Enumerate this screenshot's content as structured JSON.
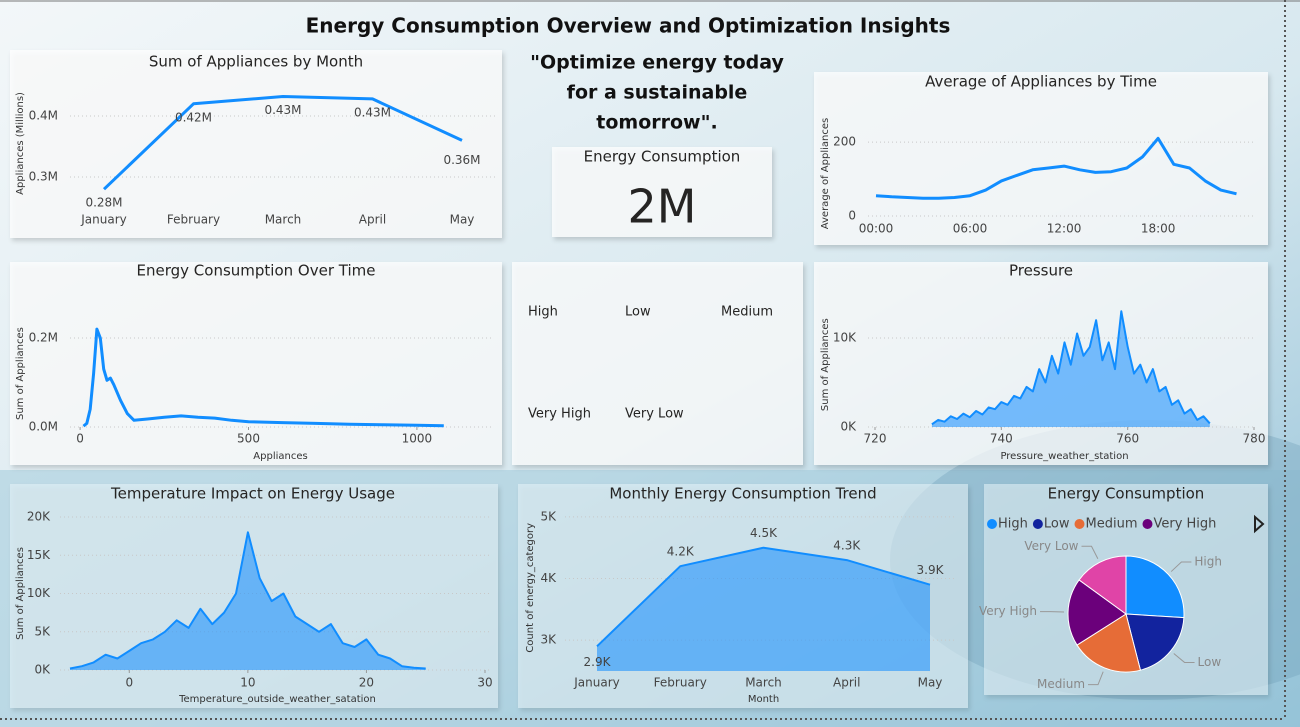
{
  "title": "Energy Consumption Overview and Optimization Insights",
  "quote": [
    "\"Optimize energy today",
    "for a sustainable",
    "tomorrow\"."
  ],
  "card": {
    "label": "Energy Consumption",
    "value": "2M"
  },
  "slicer": {
    "items": [
      "High",
      "Low",
      "Medium",
      "Very High",
      "Very Low"
    ]
  },
  "chart_data": [
    {
      "type": "line",
      "title": "Sum of Appliances by Month",
      "ylabel": "Appliances (Millions)",
      "categories": [
        "January",
        "February",
        "March",
        "April",
        "May"
      ],
      "values": [
        280000,
        420000,
        432000,
        428000,
        360000
      ],
      "value_labels": [
        "0.28M",
        "0.42M",
        "0.43M",
        "0.43M",
        "0.36M"
      ],
      "color": "#118DFF",
      "ylim": [
        260000,
        450000
      ],
      "yticks": [
        {
          "value": 300000,
          "label": "0.3M"
        },
        {
          "value": 400000,
          "label": "0.4M"
        }
      ],
      "grid": true
    },
    {
      "type": "line",
      "title": "Average of Appliances by Time",
      "ylabel": "Average of Appliances",
      "categories": [
        "00:00",
        null,
        null,
        null,
        null,
        null,
        "06:00",
        null,
        null,
        null,
        null,
        null,
        "12:00",
        null,
        null,
        null,
        null,
        null,
        "18:00",
        null,
        null,
        null,
        null,
        null
      ],
      "values": [
        55,
        52,
        50,
        48,
        48,
        50,
        55,
        70,
        95,
        110,
        125,
        130,
        135,
        125,
        118,
        120,
        130,
        160,
        210,
        140,
        130,
        95,
        70,
        60
      ],
      "color": "#118DFF",
      "ylim": [
        0,
        230
      ],
      "yticks": [
        0,
        200
      ],
      "grid": true
    },
    {
      "type": "line",
      "title": "Energy Consumption Over Time",
      "xlabel": "Appliances",
      "ylabel": "Sum of Appliances",
      "x": [
        10,
        20,
        30,
        40,
        50,
        60,
        70,
        80,
        90,
        100,
        120,
        140,
        160,
        200,
        250,
        300,
        350,
        400,
        450,
        500,
        600,
        700,
        800,
        900,
        1000,
        1080
      ],
      "values": [
        2000,
        8000,
        40000,
        120000,
        220000,
        200000,
        130000,
        105000,
        110000,
        95000,
        60000,
        30000,
        15000,
        18000,
        22000,
        25000,
        22000,
        20000,
        15000,
        12000,
        10000,
        8000,
        6000,
        5000,
        4000,
        3000
      ],
      "color": "#118DFF",
      "xlim": [
        -30,
        1220
      ],
      "xticks": [
        0,
        500,
        1000
      ],
      "ylim": [
        0,
        240000
      ],
      "yticks": [
        {
          "value": 0,
          "label": "0.0M"
        },
        {
          "value": 200000,
          "label": "0.2M"
        }
      ],
      "grid": true
    },
    {
      "type": "area",
      "title": "Pressure",
      "xlabel": "Pressure_weather_station",
      "ylabel": "Sum of Appliances",
      "x": [
        729,
        730,
        731,
        732,
        733,
        734,
        735,
        736,
        737,
        738,
        739,
        740,
        741,
        742,
        743,
        744,
        745,
        746,
        747,
        748,
        749,
        750,
        751,
        752,
        753,
        754,
        755,
        756,
        757,
        758,
        759,
        760,
        761,
        762,
        763,
        764,
        765,
        766,
        767,
        768,
        769,
        770,
        771,
        772,
        773
      ],
      "values": [
        300,
        800,
        600,
        1200,
        900,
        1500,
        1100,
        1800,
        1400,
        2200,
        2000,
        2800,
        2500,
        3500,
        3200,
        4500,
        4000,
        6500,
        5000,
        8000,
        6000,
        9500,
        7000,
        10500,
        8000,
        9000,
        12000,
        7500,
        9500,
        6500,
        13000,
        9000,
        6000,
        7000,
        5000,
        6500,
        4000,
        4500,
        2500,
        3000,
        1500,
        2000,
        800,
        1200,
        400
      ],
      "color": "#118DFF",
      "xlim": [
        720,
        780
      ],
      "xticks": [
        720,
        740,
        760,
        780
      ],
      "ylim": [
        0,
        14000
      ],
      "yticks": [
        {
          "value": 0,
          "label": "0K"
        },
        {
          "value": 10000,
          "label": "10K"
        }
      ],
      "grid": true
    },
    {
      "type": "area",
      "title": "Temperature Impact on Energy Usage",
      "xlabel": "Temperature_outside_weather_satation",
      "ylabel": "Sum of Appliances",
      "x": [
        -5,
        -4,
        -3,
        -2,
        -1,
        0,
        1,
        2,
        3,
        4,
        5,
        6,
        7,
        8,
        9,
        10,
        11,
        12,
        13,
        14,
        15,
        16,
        17,
        18,
        19,
        20,
        21,
        22,
        23,
        24,
        25
      ],
      "values": [
        200,
        500,
        1000,
        2000,
        1500,
        2500,
        3500,
        4000,
        5000,
        6500,
        5500,
        8000,
        6000,
        7500,
        10000,
        18000,
        12000,
        9000,
        10000,
        7000,
        6000,
        5000,
        6000,
        3500,
        3000,
        4000,
        2000,
        1500,
        500,
        300,
        200
      ],
      "color": "#118DFF",
      "xlim": [
        -5,
        30
      ],
      "xticks": [
        0,
        10,
        20,
        30
      ],
      "ylim": [
        0,
        20000
      ],
      "yticks": [
        {
          "value": 0,
          "label": "0K"
        },
        {
          "value": 5000,
          "label": "5K"
        },
        {
          "value": 10000,
          "label": "10K"
        },
        {
          "value": 15000,
          "label": "15K"
        },
        {
          "value": 20000,
          "label": "20K"
        }
      ],
      "grid": true
    },
    {
      "type": "area",
      "title": "Monthly Energy Consumption Trend",
      "xlabel": "Month",
      "ylabel": "Count of energy_category",
      "categories": [
        "January",
        "February",
        "March",
        "April",
        "May"
      ],
      "values": [
        2900,
        4200,
        4500,
        4300,
        3900
      ],
      "value_labels": [
        "2.9K",
        "4.2K",
        "4.5K",
        "4.3K",
        "3.9K"
      ],
      "color": "#118DFF",
      "ylim": [
        2500,
        5200
      ],
      "yticks": [
        {
          "value": 3000,
          "label": "3K"
        },
        {
          "value": 4000,
          "label": "4K"
        },
        {
          "value": 5000,
          "label": "5K"
        }
      ],
      "grid": true
    },
    {
      "type": "pie",
      "title": "Energy Consumption",
      "categories": [
        "High",
        "Low",
        "Medium",
        "Very High",
        "Very Low"
      ],
      "values": [
        26,
        20,
        20,
        19,
        15
      ],
      "colors": [
        "#118DFF",
        "#12239E",
        "#E66C37",
        "#6B007B",
        "#E044A7"
      ]
    }
  ]
}
